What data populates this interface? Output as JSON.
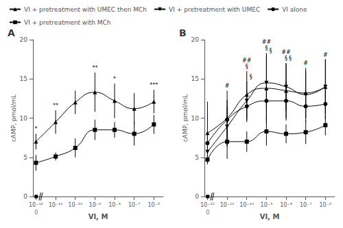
{
  "chart_data": [
    {
      "type": "line",
      "title": "A",
      "xlabel": "VI, M",
      "ylabel": "cAMP, pmol/mL",
      "log": "x",
      "x": [
        1e-12,
        1e-11,
        1e-10,
        1e-09,
        1e-08,
        1e-07,
        1e-06
      ],
      "xlim": [
        7e-13,
        3e-06
      ],
      "xticks": [
        {
          "value": 1e-12,
          "label": "10⁻¹²"
        },
        {
          "value": 1e-11,
          "label": "10⁻¹¹"
        },
        {
          "value": 1e-10,
          "label": "10⁻¹⁰"
        },
        {
          "value": 1e-09,
          "label": "10⁻⁹"
        },
        {
          "value": 1e-08,
          "label": "10⁻⁸"
        },
        {
          "value": 1e-07,
          "label": "10⁻⁷"
        },
        {
          "value": 1e-06,
          "label": "10⁻⁶"
        }
      ],
      "ylim": [
        0,
        20
      ],
      "yticks": [
        0,
        5,
        10,
        15,
        20
      ],
      "grid": false,
      "legend": "upper left",
      "color": "black",
      "zero_dose": {
        "label": "0",
        "value": 0
      },
      "series": [
        {
          "name": "VI + pretreatment with UMEC then MCh",
          "marker": "triangle-up",
          "values": [
            7.0,
            9.5,
            12.0,
            13.3,
            12.2,
            11.2,
            12.1
          ],
          "yerr": [
            1.0,
            1.5,
            1.5,
            2.5,
            2.2,
            2.0,
            1.5
          ],
          "annotations": [
            "*",
            "**",
            null,
            "**",
            "*",
            null,
            "***"
          ]
        },
        {
          "name": "VI + pretreatment with MCh",
          "marker": "square",
          "values": [
            4.3,
            5.1,
            6.2,
            8.5,
            8.5,
            8.0,
            9.2
          ],
          "yerr": [
            1.0,
            0.5,
            1.2,
            1.3,
            1.0,
            1.5,
            1.2
          ],
          "annotations": [
            null,
            null,
            null,
            null,
            null,
            null,
            null
          ]
        }
      ]
    },
    {
      "type": "line",
      "title": "B",
      "xlabel": "VI, M",
      "ylabel": "cAMP, pmol/mL",
      "log": "x",
      "x": [
        1e-12,
        1e-11,
        1e-10,
        1e-09,
        1e-08,
        1e-07,
        1e-06
      ],
      "xlim": [
        7e-13,
        3e-06
      ],
      "xticks": [
        {
          "value": 1e-12,
          "label": "10⁻¹²"
        },
        {
          "value": 1e-11,
          "label": "10⁻¹¹"
        },
        {
          "value": 1e-10,
          "label": "10⁻¹⁰"
        },
        {
          "value": 1e-09,
          "label": "10⁻⁹"
        },
        {
          "value": 1e-08,
          "label": "10⁻⁸"
        },
        {
          "value": 1e-07,
          "label": "10⁻⁷"
        },
        {
          "value": 1e-06,
          "label": "10⁻⁶"
        }
      ],
      "ylim": [
        0,
        20
      ],
      "yticks": [
        0,
        5,
        10,
        15,
        20
      ],
      "grid": false,
      "color": "black",
      "zero_dose": {
        "label": "0",
        "value": 0
      },
      "series": [
        {
          "name": "VI + pretreatment with UMEC then MCh",
          "marker": "triangle-up",
          "values": [
            8.1,
            10.0,
            13.0,
            13.8,
            13.5,
            13.2,
            14.0
          ],
          "yerr": [
            4.0,
            3.5,
            3.0,
            4.5,
            3.5,
            3.2,
            3.5
          ],
          "annotations": [
            null,
            "#",
            "##\n§",
            "##\n§",
            "##\n§",
            "#",
            "#"
          ]
        },
        {
          "name": "VI + pretreatment with UMEC",
          "marker": "triangle-down",
          "values": [
            5.7,
            8.9,
            12.2,
            14.5,
            14.0,
            13.0,
            14.0
          ],
          "yerr": [
            0.8,
            2.5,
            2.5,
            3.5,
            3.0,
            3.0,
            3.5
          ],
          "annotations": [
            null,
            null,
            "§",
            "§",
            "§",
            null,
            null
          ]
        },
        {
          "name": "VI alone",
          "marker": "circle",
          "values": [
            6.8,
            9.8,
            11.5,
            12.2,
            12.2,
            11.5,
            11.8
          ],
          "yerr": [
            1.2,
            2.5,
            2.0,
            2.5,
            2.5,
            2.0,
            2.0
          ],
          "annotations": [
            null,
            null,
            null,
            null,
            null,
            null,
            null
          ]
        },
        {
          "name": "VI + pretreatment with MCh",
          "marker": "square",
          "values": [
            4.7,
            7.0,
            7.0,
            8.3,
            8.0,
            8.2,
            9.1
          ],
          "yerr": [
            0.5,
            2.2,
            1.3,
            1.8,
            1.2,
            1.5,
            1.3
          ],
          "annotations": [
            null,
            null,
            null,
            null,
            null,
            null,
            null
          ]
        }
      ]
    }
  ]
}
